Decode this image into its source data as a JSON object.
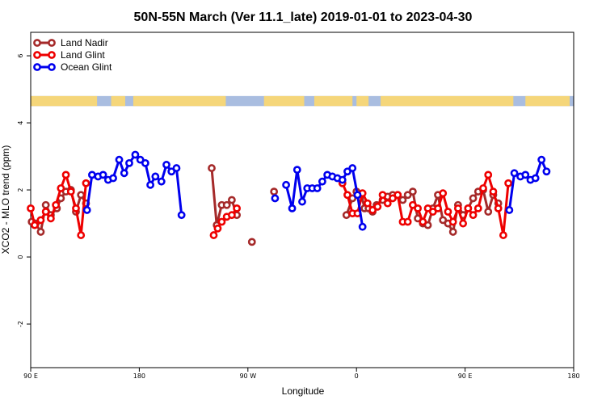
{
  "chart_data": {
    "type": "line",
    "title": "50N-55N March (Ver 11.1_late)   2019-01-01 to 2023-04-30",
    "xlabel": "Longitude",
    "ylabel": "XCO2 - MLO trend (ppm)",
    "xlim": [
      90,
      360
    ],
    "ylim": [
      -3.3,
      6.7
    ],
    "x_ticks": [
      {
        "value": 90,
        "label": "90 E"
      },
      {
        "value": 144,
        "label": "180"
      },
      {
        "value": 198,
        "label": "90 W"
      },
      {
        "value": 252,
        "label": "0"
      },
      {
        "value": 306,
        "label": "90 E"
      },
      {
        "value": 360,
        "label": "180"
      }
    ],
    "y_ticks": [
      {
        "value": -2,
        "label": "-2"
      },
      {
        "value": 0,
        "label": "0"
      },
      {
        "value": 2,
        "label": "2"
      },
      {
        "value": 4,
        "label": "4"
      },
      {
        "value": 6,
        "label": "6"
      }
    ],
    "legend_position": "top-left",
    "land_strip": {
      "y_range": [
        4.5,
        4.8
      ],
      "land_color": "#f5d67a",
      "ocean_color": "#a9bde0"
    },
    "series": [
      {
        "name": "Land Nadir",
        "color": "#a52a2a",
        "segments": [
          [
            [
              90.5,
              1.05
            ],
            [
              92.5,
              1.0
            ],
            [
              95,
              0.75
            ],
            [
              97.5,
              1.55
            ],
            [
              100,
              1.25
            ],
            [
              103,
              1.45
            ],
            [
              105,
              1.75
            ],
            [
              107.5,
              1.95
            ],
            [
              110,
              2.0
            ],
            [
              112.5,
              1.35
            ],
            [
              115,
              1.85
            ],
            [
              117.5,
              1.6
            ]
          ],
          [
            [
              180,
              2.65
            ],
            [
              182.5,
              0.95
            ],
            [
              185,
              1.55
            ],
            [
              187.5,
              1.55
            ],
            [
              190,
              1.7
            ],
            [
              192.5,
              1.25
            ]
          ],
          [
            [
              200,
              0.45
            ]
          ],
          [
            [
              211,
              1.95
            ]
          ],
          [
            [
              247,
              1.25
            ],
            [
              250,
              1.75
            ],
            [
              252,
              1.95
            ],
            [
              254.5,
              1.85
            ],
            [
              256,
              1.45
            ],
            [
              258,
              1.45
            ],
            [
              260,
              1.35
            ],
            [
              262,
              1.55
            ],
            [
              265,
              1.7
            ],
            [
              267.5,
              1.8
            ],
            [
              270,
              1.85
            ],
            [
              272.5,
              1.85
            ],
            [
              275,
              1.7
            ],
            [
              277.5,
              1.85
            ],
            [
              280,
              1.95
            ],
            [
              282.5,
              1.15
            ],
            [
              285,
              1.0
            ],
            [
              287.5,
              0.95
            ],
            [
              290,
              1.45
            ],
            [
              292.5,
              1.85
            ],
            [
              295,
              1.1
            ],
            [
              297.5,
              1.0
            ],
            [
              300,
              0.75
            ],
            [
              302.5,
              1.55
            ],
            [
              305,
              1.25
            ],
            [
              307.5,
              1.45
            ],
            [
              310,
              1.75
            ],
            [
              312.5,
              1.95
            ],
            [
              315,
              2.0
            ],
            [
              317.5,
              1.35
            ],
            [
              320,
              1.85
            ],
            [
              322.5,
              1.6
            ]
          ]
        ]
      },
      {
        "name": "Land Glint",
        "color": "#ee0000",
        "segments": [
          [
            [
              90,
              1.45
            ],
            [
              92,
              0.95
            ],
            [
              95,
              1.1
            ],
            [
              97.5,
              1.35
            ],
            [
              100,
              1.15
            ],
            [
              102.5,
              1.55
            ],
            [
              105,
              2.05
            ],
            [
              107.5,
              2.45
            ],
            [
              110,
              1.95
            ],
            [
              112.5,
              1.45
            ],
            [
              115,
              0.65
            ],
            [
              117.5,
              2.2
            ]
          ],
          [
            [
              181,
              0.65
            ],
            [
              183,
              0.85
            ],
            [
              185,
              1.05
            ],
            [
              187.5,
              1.2
            ],
            [
              190,
              1.25
            ],
            [
              192.5,
              1.45
            ]
          ],
          [
            [
              245,
              2.2
            ],
            [
              247.5,
              1.85
            ],
            [
              250,
              1.3
            ],
            [
              252.5,
              1.3
            ],
            [
              255,
              1.9
            ],
            [
              257.5,
              1.6
            ],
            [
              260,
              1.4
            ],
            [
              262.5,
              1.5
            ],
            [
              265,
              1.85
            ],
            [
              267.5,
              1.6
            ],
            [
              270,
              1.75
            ],
            [
              272.5,
              1.85
            ],
            [
              275,
              1.05
            ],
            [
              277.5,
              1.05
            ],
            [
              280,
              1.55
            ],
            [
              282.5,
              1.45
            ],
            [
              285,
              1.05
            ],
            [
              287.5,
              1.45
            ],
            [
              290,
              1.35
            ],
            [
              292.5,
              1.45
            ],
            [
              295,
              1.9
            ],
            [
              297.5,
              1.35
            ],
            [
              300,
              1.05
            ],
            [
              302.5,
              1.45
            ],
            [
              305,
              1.0
            ],
            [
              307.5,
              1.45
            ],
            [
              310,
              1.25
            ],
            [
              312.5,
              1.45
            ],
            [
              315,
              2.05
            ],
            [
              317.5,
              2.45
            ],
            [
              320,
              1.95
            ],
            [
              322.5,
              1.45
            ],
            [
              325,
              0.65
            ],
            [
              327.5,
              2.2
            ]
          ]
        ]
      },
      {
        "name": "Ocean Glint",
        "color": "#0000ee",
        "segments": [
          [
            [
              118,
              1.4
            ],
            [
              120.5,
              2.45
            ],
            [
              123.5,
              2.4
            ],
            [
              126,
              2.45
            ],
            [
              128.5,
              2.3
            ],
            [
              131,
              2.35
            ],
            [
              134,
              2.9
            ],
            [
              136.5,
              2.5
            ],
            [
              139,
              2.8
            ],
            [
              142,
              3.05
            ],
            [
              144.5,
              2.9
            ],
            [
              147,
              2.8
            ],
            [
              149.5,
              2.15
            ],
            [
              152,
              2.4
            ],
            [
              155,
              2.25
            ],
            [
              157.5,
              2.75
            ],
            [
              160,
              2.55
            ],
            [
              162.5,
              2.65
            ],
            [
              165,
              1.25
            ]
          ],
          [
            [
              211.5,
              1.75
            ]
          ],
          [
            [
              217,
              2.15
            ],
            [
              220,
              1.45
            ],
            [
              222.5,
              2.6
            ],
            [
              225,
              1.65
            ],
            [
              227.5,
              2.05
            ],
            [
              230,
              2.05
            ],
            [
              232.5,
              2.05
            ],
            [
              235,
              2.25
            ],
            [
              237.5,
              2.45
            ],
            [
              240,
              2.4
            ],
            [
              242.5,
              2.35
            ],
            [
              245,
              2.3
            ],
            [
              247.5,
              2.55
            ],
            [
              250,
              2.65
            ],
            [
              252.5,
              1.85
            ],
            [
              255,
              0.9
            ]
          ],
          [
            [
              328,
              1.4
            ],
            [
              330.5,
              2.5
            ],
            [
              333.5,
              2.4
            ],
            [
              336,
              2.45
            ],
            [
              338.5,
              2.3
            ],
            [
              341,
              2.35
            ],
            [
              344,
              2.9
            ],
            [
              346.5,
              2.55
            ]
          ]
        ]
      }
    ]
  }
}
